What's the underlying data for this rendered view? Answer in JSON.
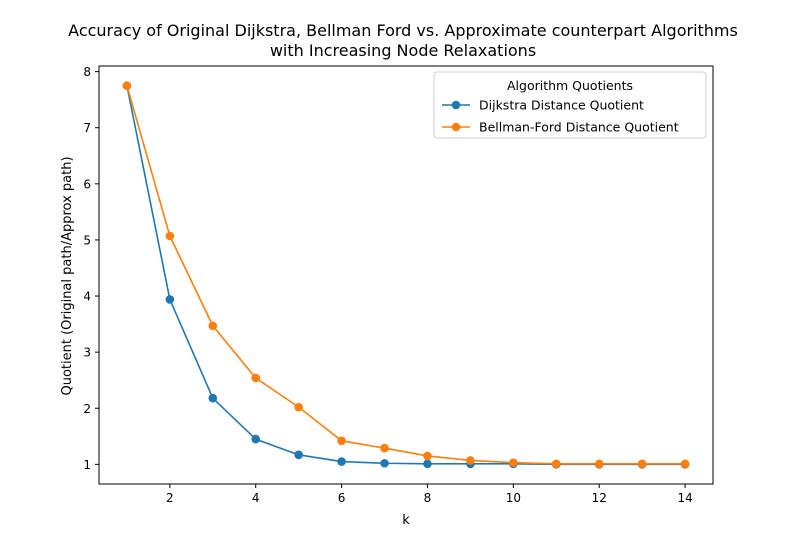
{
  "chart_data": {
    "type": "line",
    "title_lines": [
      "Accuracy of Original Dijkstra, Bellman Ford vs. Approximate counterpart Algorithms",
      "with Increasing Node Relaxations"
    ],
    "xlabel": "k",
    "ylabel": "Quotient (Original path/Approx path)",
    "xlim": [
      0.35,
      14.65
    ],
    "ylim": [
      0.65,
      8.1
    ],
    "xticks": [
      2,
      4,
      6,
      8,
      10,
      12,
      14
    ],
    "yticks": [
      1,
      2,
      3,
      4,
      5,
      6,
      7,
      8
    ],
    "grid": false,
    "legend": {
      "title": "Algorithm Quotients",
      "placement": "top-right"
    },
    "x": [
      1,
      2,
      3,
      4,
      5,
      6,
      7,
      8,
      9,
      10,
      11,
      12,
      13,
      14
    ],
    "series": [
      {
        "name": "Dijkstra Distance Quotient",
        "color": "#1f77b4",
        "values": [
          7.75,
          3.94,
          2.18,
          1.45,
          1.17,
          1.05,
          1.02,
          1.01,
          1.01,
          1.01,
          1.0,
          1.0,
          1.0,
          1.0
        ]
      },
      {
        "name": "Bellman-Ford Distance Quotient",
        "color": "#ff7f0e",
        "values": [
          7.75,
          5.07,
          3.47,
          2.54,
          2.02,
          1.42,
          1.29,
          1.15,
          1.07,
          1.03,
          1.01,
          1.01,
          1.01,
          1.01
        ]
      }
    ]
  }
}
